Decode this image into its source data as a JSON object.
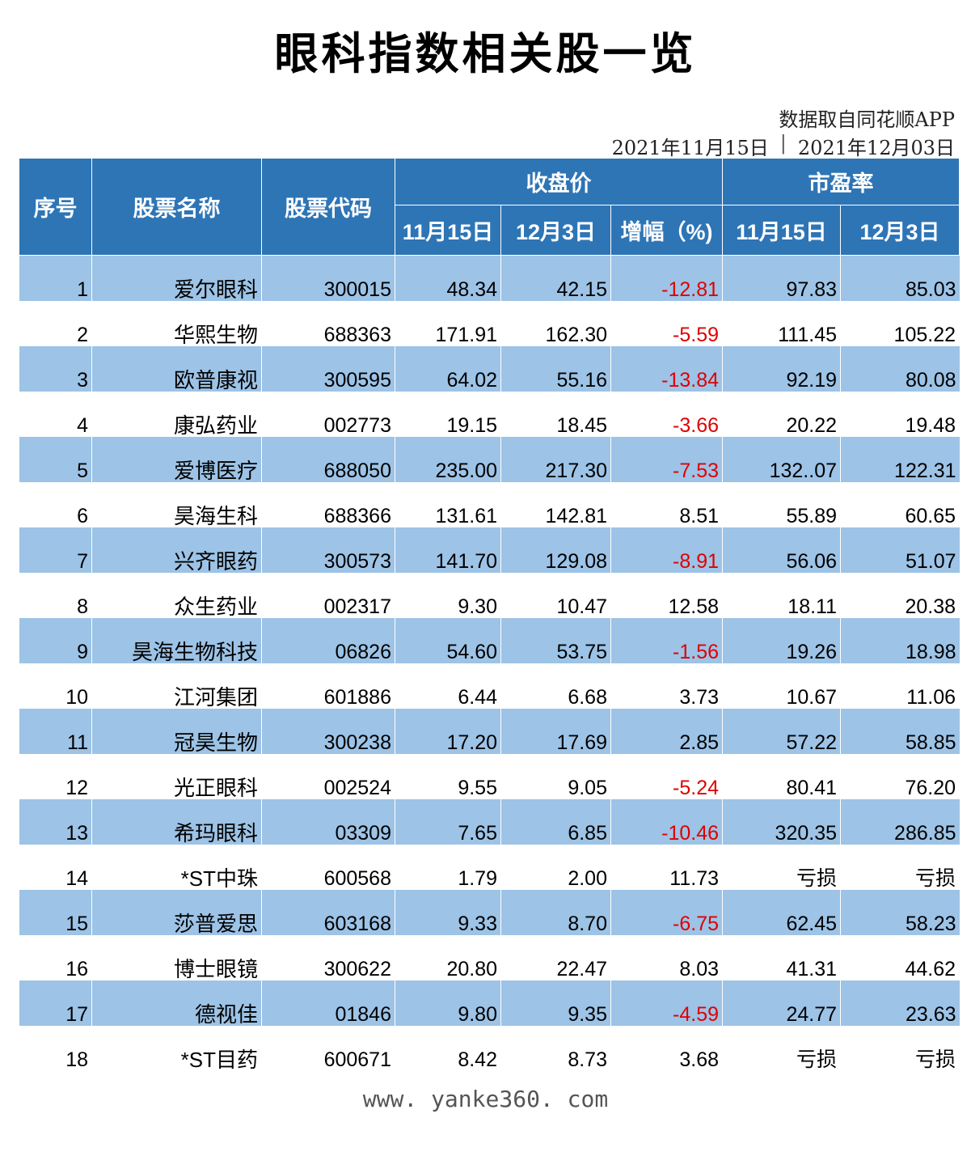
{
  "title": "眼科指数相关股一览",
  "source": "数据取自同花顺APP",
  "date_start": "2021年11月15日",
  "date_sep": "|",
  "date_end": "2021年12月03日",
  "headers": {
    "index": "序号",
    "name": "股票名称",
    "code": "股票代码",
    "close_price": "收盘价",
    "pe_ratio": "市盈率",
    "nov15": "11月15日",
    "dec3": "12月3日",
    "change": "增幅（%)",
    "pe_nov15": "11月15日",
    "pe_dec3": "12月3日"
  },
  "negative_color": "#e00000",
  "header_color": "#2e75b6",
  "stripe_color": "#9dc3e6",
  "rows": [
    {
      "idx": "1",
      "name": "爱尔眼科",
      "code": "300015",
      "p1": "48.34",
      "p2": "42.15",
      "chg": "-12.81",
      "pe1": "97.83",
      "pe2": "85.03"
    },
    {
      "idx": "2",
      "name": "华熙生物",
      "code": "688363",
      "p1": "171.91",
      "p2": "162.30",
      "chg": "-5.59",
      "pe1": "111.45",
      "pe2": "105.22"
    },
    {
      "idx": "3",
      "name": "欧普康视",
      "code": "300595",
      "p1": "64.02",
      "p2": "55.16",
      "chg": "-13.84",
      "pe1": "92.19",
      "pe2": "80.08"
    },
    {
      "idx": "4",
      "name": "康弘药业",
      "code": "002773",
      "p1": "19.15",
      "p2": "18.45",
      "chg": "-3.66",
      "pe1": "20.22",
      "pe2": "19.48"
    },
    {
      "idx": "5",
      "name": "爱博医疗",
      "code": "688050",
      "p1": "235.00",
      "p2": "217.30",
      "chg": "-7.53",
      "pe1": "132..07",
      "pe2": "122.31"
    },
    {
      "idx": "6",
      "name": "昊海生科",
      "code": "688366",
      "p1": "131.61",
      "p2": "142.81",
      "chg": "8.51",
      "pe1": "55.89",
      "pe2": "60.65"
    },
    {
      "idx": "7",
      "name": "兴齐眼药",
      "code": "300573",
      "p1": "141.70",
      "p2": "129.08",
      "chg": "-8.91",
      "pe1": "56.06",
      "pe2": "51.07"
    },
    {
      "idx": "8",
      "name": "众生药业",
      "code": "002317",
      "p1": "9.30",
      "p2": "10.47",
      "chg": "12.58",
      "pe1": "18.11",
      "pe2": "20.38"
    },
    {
      "idx": "9",
      "name": "昊海生物科技",
      "code": "06826",
      "p1": "54.60",
      "p2": "53.75",
      "chg": "-1.56",
      "pe1": "19.26",
      "pe2": "18.98"
    },
    {
      "idx": "10",
      "name": "江河集团",
      "code": "601886",
      "p1": "6.44",
      "p2": "6.68",
      "chg": "3.73",
      "pe1": "10.67",
      "pe2": "11.06"
    },
    {
      "idx": "11",
      "name": "冠昊生物",
      "code": "300238",
      "p1": "17.20",
      "p2": "17.69",
      "chg": "2.85",
      "pe1": "57.22",
      "pe2": "58.85"
    },
    {
      "idx": "12",
      "name": "光正眼科",
      "code": "002524",
      "p1": "9.55",
      "p2": "9.05",
      "chg": "-5.24",
      "pe1": "80.41",
      "pe2": "76.20"
    },
    {
      "idx": "13",
      "name": "希玛眼科",
      "code": "03309",
      "p1": "7.65",
      "p2": "6.85",
      "chg": "-10.46",
      "pe1": "320.35",
      "pe2": "286.85"
    },
    {
      "idx": "14",
      "name": "*ST中珠",
      "code": "600568",
      "p1": "1.79",
      "p2": "2.00",
      "chg": "11.73",
      "pe1": "亏损",
      "pe2": "亏损"
    },
    {
      "idx": "15",
      "name": "莎普爱思",
      "code": "603168",
      "p1": "9.33",
      "p2": "8.70",
      "chg": "-6.75",
      "pe1": "62.45",
      "pe2": "58.23"
    },
    {
      "idx": "16",
      "name": "博士眼镜",
      "code": "300622",
      "p1": "20.80",
      "p2": "22.47",
      "chg": "8.03",
      "pe1": "41.31",
      "pe2": "44.62"
    },
    {
      "idx": "17",
      "name": "德视佳",
      "code": "01846",
      "p1": "9.80",
      "p2": "9.35",
      "chg": "-4.59",
      "pe1": "24.77",
      "pe2": "23.63"
    },
    {
      "idx": "18",
      "name": "*ST目药",
      "code": "600671",
      "p1": "8.42",
      "p2": "8.73",
      "chg": "3.68",
      "pe1": "亏损",
      "pe2": "亏损"
    }
  ],
  "watermark": "www. yanke360. com"
}
